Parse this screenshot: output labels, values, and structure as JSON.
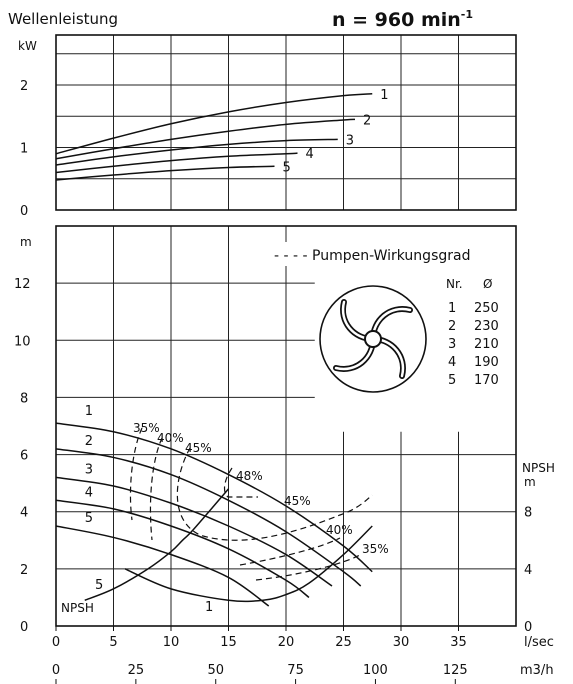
{
  "chart_data": [
    {
      "type": "line",
      "title": "Wellenleistung",
      "speed_prefix": "n = 960 min",
      "speed_exp": "-1",
      "ylabel": "kW",
      "ylim": [
        0,
        2.8
      ],
      "xlim": [
        0,
        40
      ],
      "yticks": [
        "0",
        "1",
        "2"
      ],
      "grid": true,
      "series": [
        {
          "name": "1",
          "x": [
            0,
            5,
            10,
            15,
            20,
            25,
            27.5
          ],
          "y": [
            0.9,
            1.15,
            1.38,
            1.57,
            1.72,
            1.83,
            1.86
          ]
        },
        {
          "name": "2",
          "x": [
            0,
            5,
            10,
            15,
            20,
            25,
            26
          ],
          "y": [
            0.82,
            0.98,
            1.13,
            1.26,
            1.37,
            1.44,
            1.45
          ]
        },
        {
          "name": "3",
          "x": [
            0,
            5,
            10,
            15,
            20,
            24.5
          ],
          "y": [
            0.72,
            0.85,
            0.96,
            1.05,
            1.11,
            1.13
          ]
        },
        {
          "name": "4",
          "x": [
            0,
            5,
            10,
            15,
            20,
            21
          ],
          "y": [
            0.6,
            0.7,
            0.79,
            0.86,
            0.9,
            0.91
          ]
        },
        {
          "name": "5",
          "x": [
            0,
            5,
            10,
            15,
            19
          ],
          "y": [
            0.48,
            0.56,
            0.63,
            0.68,
            0.7
          ]
        }
      ]
    },
    {
      "type": "line",
      "ylabel": "m",
      "ylim": [
        0,
        14
      ],
      "xlim": [
        0,
        40
      ],
      "yticks": [
        "0",
        "2",
        "4",
        "6",
        "8",
        "10",
        "12"
      ],
      "xlabel_1": "l/sec",
      "xlabel_2": "m3/h",
      "xticks_1": [
        0,
        5,
        10,
        15,
        20,
        25,
        30,
        35
      ],
      "xticks_2": [
        0,
        25,
        50,
        75,
        100,
        125
      ],
      "y2label_1": "NPSH",
      "y2label_2": "m",
      "y2lim": [
        0,
        14
      ],
      "y2ticks": [
        "0",
        "4",
        "8"
      ],
      "grid": true,
      "legend_title": "- - - - Pumpen-Wirkungsgrad",
      "legend_head": [
        "Nr.",
        "Ø"
      ],
      "legend_rows": [
        [
          "1",
          "250"
        ],
        [
          "2",
          "230"
        ],
        [
          "3",
          "210"
        ],
        [
          "4",
          "190"
        ],
        [
          "5",
          "170"
        ]
      ],
      "head_series": [
        {
          "name": "1",
          "x": [
            0,
            5,
            10,
            15,
            20,
            25,
            27.5
          ],
          "y": [
            7.1,
            6.8,
            6.2,
            5.3,
            4.2,
            2.8,
            1.9
          ]
        },
        {
          "name": "2",
          "x": [
            0,
            5,
            10,
            15,
            20,
            25,
            26.5
          ],
          "y": [
            6.2,
            5.9,
            5.3,
            4.4,
            3.3,
            1.9,
            1.4
          ]
        },
        {
          "name": "3",
          "x": [
            0,
            5,
            10,
            15,
            20,
            24
          ],
          "y": [
            5.2,
            4.9,
            4.3,
            3.5,
            2.5,
            1.4
          ]
        },
        {
          "name": "4",
          "x": [
            0,
            5,
            10,
            15,
            20,
            22
          ],
          "y": [
            4.4,
            4.1,
            3.5,
            2.7,
            1.6,
            1.0
          ]
        },
        {
          "name": "5",
          "x": [
            0,
            5,
            10,
            15,
            18.5
          ],
          "y": [
            3.5,
            3.1,
            2.5,
            1.7,
            0.7
          ]
        }
      ],
      "npsh_series": [
        {
          "name": "NPSH",
          "x": [
            2.5,
            5,
            8,
            10,
            11,
            12,
            15
          ],
          "y": [
            0.9,
            1.3,
            2.0,
            2.6,
            3.0,
            3.4,
            4.8
          ]
        },
        {
          "name": "1",
          "x": [
            6,
            10,
            15,
            18,
            20,
            22,
            25,
            27.5
          ],
          "y": [
            2.0,
            1.3,
            0.9,
            0.9,
            1.1,
            1.5,
            2.5,
            3.5
          ]
        }
      ],
      "npsh_label": "NPSH",
      "efficiency_labels": [
        "35%",
        "40%",
        "45%",
        "48%",
        "45%",
        "40%",
        "35%"
      ]
    }
  ]
}
